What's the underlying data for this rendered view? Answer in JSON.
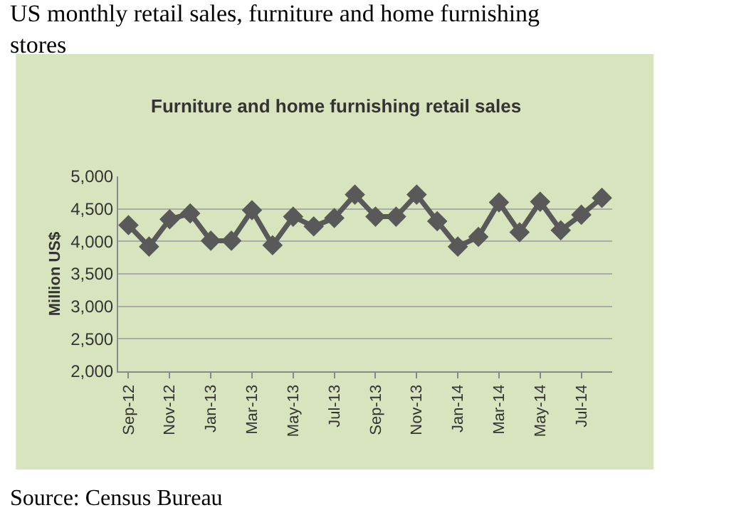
{
  "chart_data": {
    "type": "line",
    "title": "US monthly retail sales, furniture and home furnishing stores",
    "subtitle": "Furniture and home furnishing retail sales",
    "ylabel": "Million US$",
    "annotations": [
      "Source: Census Bureau"
    ],
    "categories": [
      "Sep-12",
      null,
      "Nov-12",
      null,
      "Jan-13",
      null,
      "Mar-13",
      null,
      "May-13",
      null,
      "Jul-13",
      null,
      "Sep-13",
      null,
      "Nov-13",
      null,
      "Jan-14",
      null,
      "Mar-14",
      null,
      "May-14",
      null,
      "Jul-14",
      null
    ],
    "series": [
      {
        "color": "#595959",
        "values": [
          4250,
          3920,
          4340,
          4430,
          4010,
          4010,
          4480,
          3940,
          4380,
          4230,
          4360,
          4720,
          4380,
          4380,
          4720,
          4310,
          3920,
          4070,
          4600,
          4140,
          4610,
          4170,
          4410,
          4670
        ]
      }
    ],
    "ylim": [
      2000,
      5000
    ],
    "yticks": [
      {
        "value": 2000,
        "label": "2,000"
      },
      {
        "value": 2500,
        "label": "2,500"
      },
      {
        "value": 3000,
        "label": "3,000"
      },
      {
        "value": 3500,
        "label": "3,500"
      },
      {
        "value": 4000,
        "label": "4,000"
      },
      {
        "value": 4500,
        "label": "4,500"
      },
      {
        "value": 5000,
        "label": "5,000"
      }
    ],
    "grid": "y",
    "legend": false,
    "marker": "diamond",
    "line_style": "solid"
  }
}
